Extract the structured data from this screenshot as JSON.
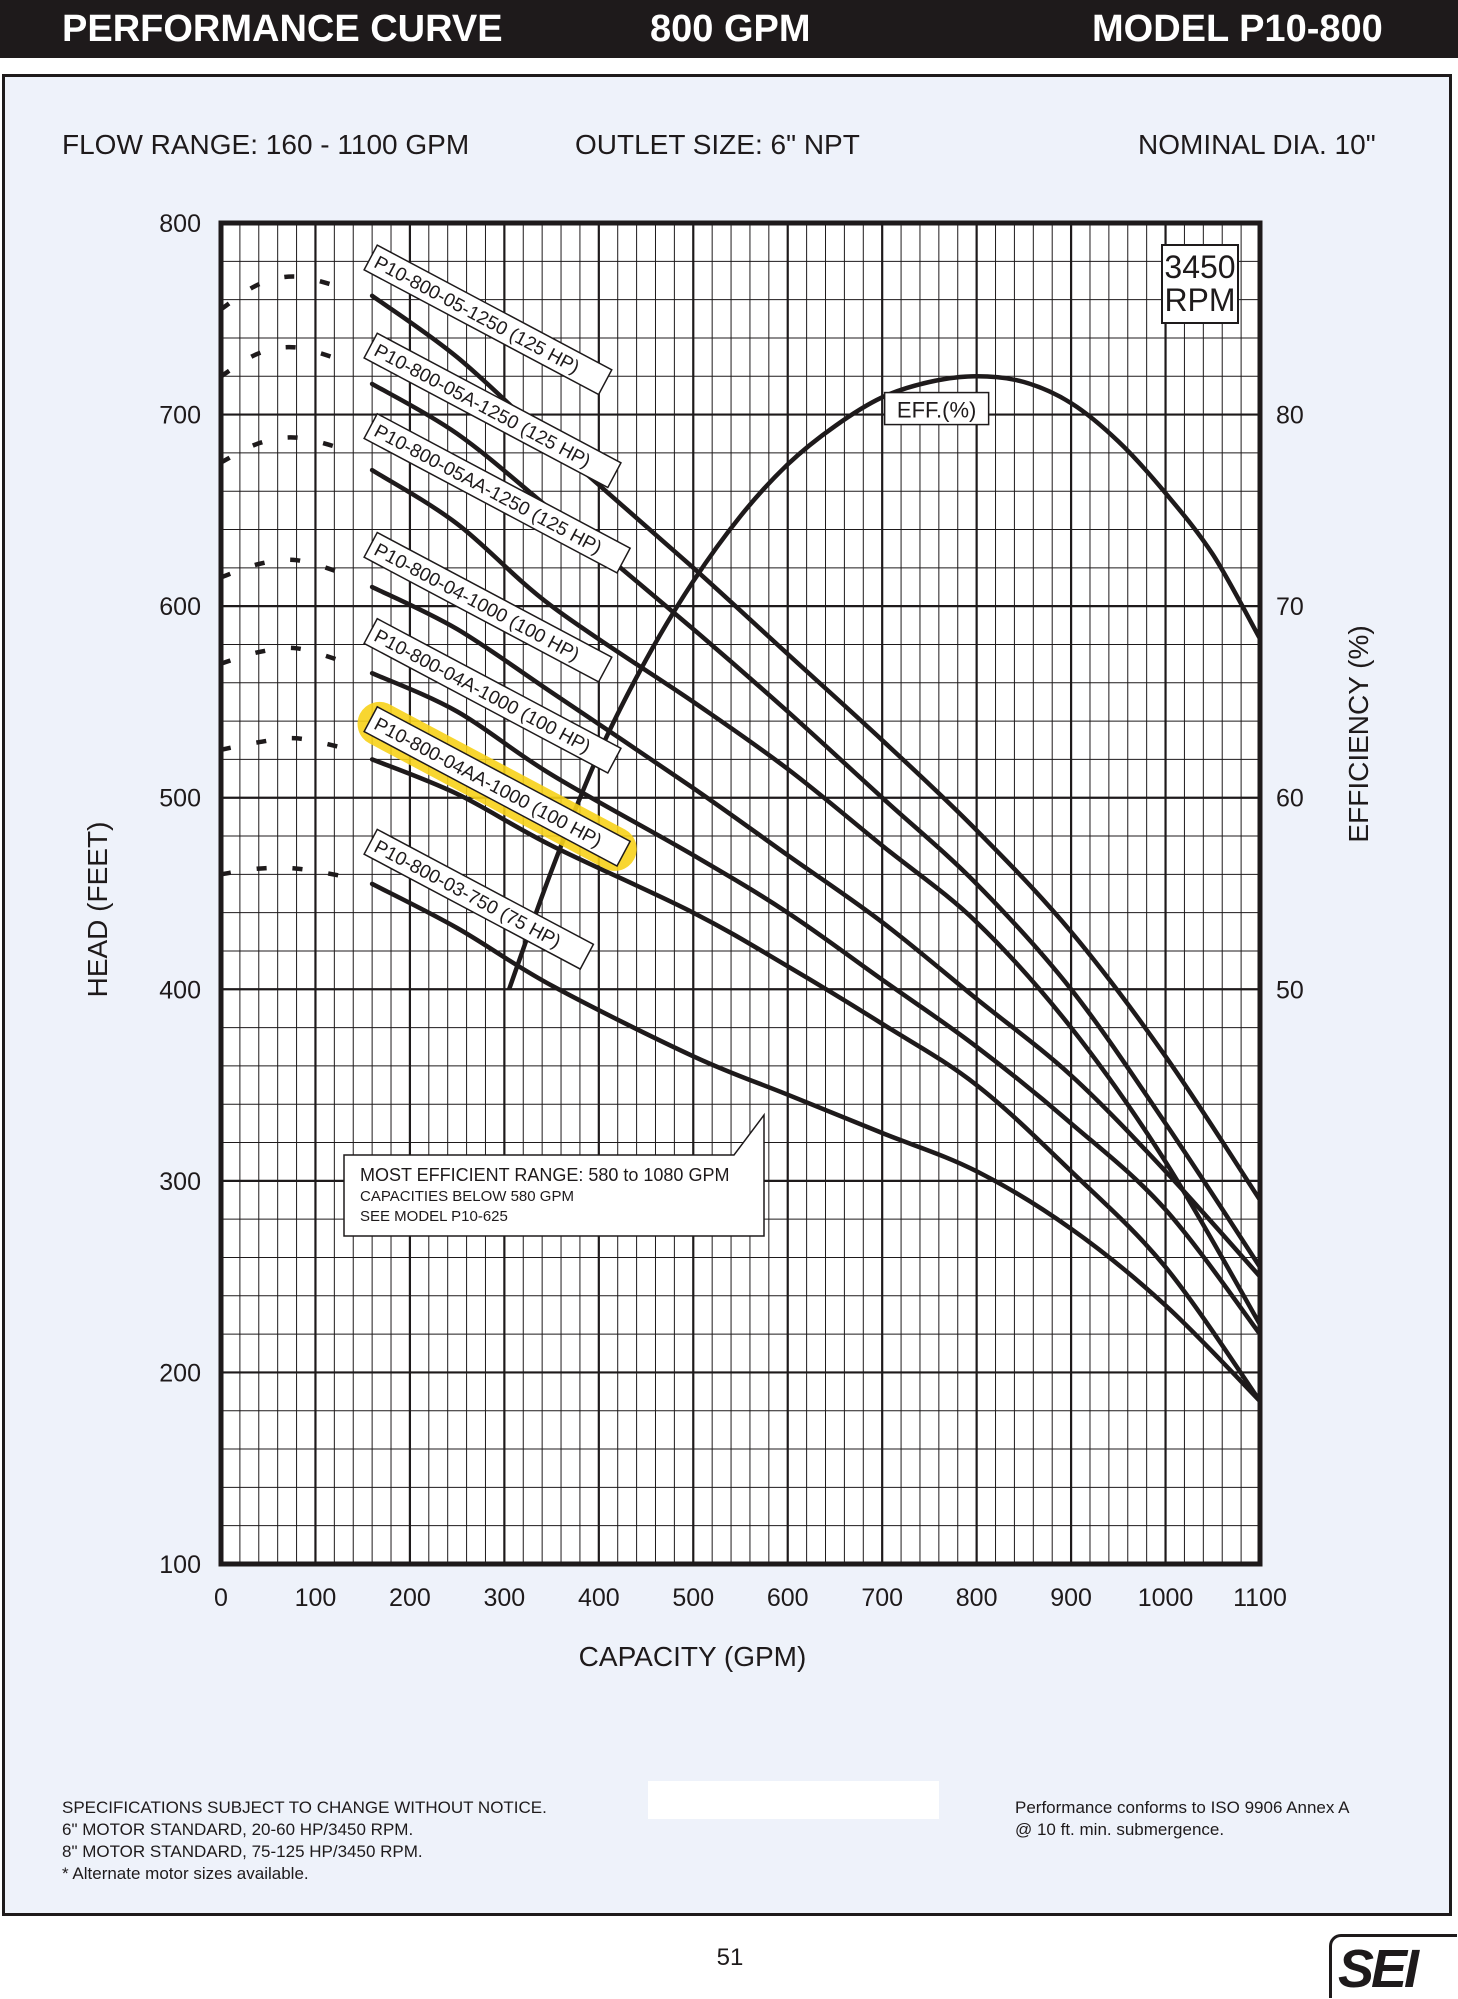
{
  "header": {
    "title": "PERFORMANCE CURVE",
    "flow": "800 GPM",
    "model": "MODEL  P10-800"
  },
  "info": {
    "flow_range": "FLOW RANGE: 160 - 1100 GPM",
    "outlet_size": "OUTLET SIZE: 6\" NPT",
    "nominal_dia": "NOMINAL DIA. 10\""
  },
  "chart_data": {
    "type": "line",
    "xlabel": "CAPACITY (GPM)",
    "ylabel": "HEAD (FEET)",
    "y2label": "EFFICIENCY (%)",
    "xlim": [
      0,
      1100
    ],
    "ylim": [
      100,
      800
    ],
    "y2lim": [
      50,
      80
    ],
    "y2_ticks": [
      50,
      60,
      70,
      80
    ],
    "x_ticks": [
      0,
      100,
      200,
      300,
      400,
      500,
      600,
      700,
      800,
      900,
      1000,
      1100
    ],
    "y_ticks": [
      100,
      200,
      300,
      400,
      500,
      600,
      700,
      800
    ],
    "grid": true,
    "rpm_box": [
      "3450",
      "RPM"
    ],
    "highlight_color": "#f7d21a",
    "series": [
      {
        "name": "P10-800-05-1250 (125 HP)",
        "shutoff": [
          [
            0,
            755
          ],
          [
            40,
            768
          ],
          [
            80,
            772
          ],
          [
            130,
            766
          ]
        ],
        "x": [
          160,
          250,
          350,
          500,
          600,
          700,
          800,
          900,
          1000,
          1100
        ],
        "y": [
          762,
          730,
          685,
          620,
          575,
          530,
          483,
          430,
          365,
          290
        ]
      },
      {
        "name": "P10-800-05A-1250 (125 HP)",
        "shutoff": [
          [
            0,
            720
          ],
          [
            40,
            732
          ],
          [
            80,
            735
          ],
          [
            130,
            728
          ]
        ],
        "x": [
          160,
          250,
          350,
          500,
          600,
          700,
          800,
          900,
          1000,
          1100
        ],
        "y": [
          716,
          690,
          650,
          588,
          545,
          500,
          455,
          400,
          330,
          255
        ]
      },
      {
        "name": "P10-800-05AA-1250 (125 HP)",
        "shutoff": [
          [
            0,
            675
          ],
          [
            40,
            685
          ],
          [
            80,
            688
          ],
          [
            130,
            682
          ]
        ],
        "x": [
          160,
          250,
          350,
          500,
          600,
          700,
          800,
          900,
          1000,
          1100
        ],
        "y": [
          671,
          643,
          600,
          550,
          515,
          475,
          435,
          380,
          310,
          225
        ]
      },
      {
        "name": "P10-800-04-1000 (100 HP)",
        "shutoff": [
          [
            0,
            615
          ],
          [
            40,
            622
          ],
          [
            80,
            624
          ],
          [
            130,
            617
          ]
        ],
        "x": [
          160,
          250,
          350,
          500,
          600,
          700,
          800,
          900,
          1000,
          1100
        ],
        "y": [
          610,
          588,
          555,
          505,
          470,
          435,
          395,
          355,
          305,
          250
        ]
      },
      {
        "name": "P10-800-04A-1000 (100 HP)",
        "shutoff": [
          [
            0,
            570
          ],
          [
            40,
            576
          ],
          [
            80,
            578
          ],
          [
            130,
            571
          ]
        ],
        "x": [
          160,
          250,
          350,
          500,
          600,
          700,
          800,
          900,
          1000,
          1100
        ],
        "y": [
          565,
          545,
          512,
          470,
          440,
          405,
          370,
          330,
          285,
          220
        ]
      },
      {
        "name": "P10-800-04AA-1000 (100 HP)",
        "shutoff": [
          [
            0,
            525
          ],
          [
            40,
            529
          ],
          [
            80,
            531
          ],
          [
            130,
            526
          ]
        ],
        "x": [
          160,
          250,
          350,
          500,
          600,
          700,
          800,
          900,
          1000,
          1100
        ],
        "y": [
          520,
          502,
          475,
          440,
          412,
          382,
          350,
          305,
          255,
          185
        ]
      },
      {
        "name": "P10-800-03-750 (75 HP)",
        "shutoff": [
          [
            0,
            460
          ],
          [
            40,
            463
          ],
          [
            80,
            463
          ],
          [
            130,
            459
          ]
        ],
        "x": [
          160,
          250,
          350,
          500,
          600,
          700,
          800,
          900,
          1000,
          1100
        ],
        "y": [
          455,
          432,
          402,
          365,
          345,
          325,
          305,
          275,
          235,
          185
        ]
      }
    ],
    "efficiency": {
      "name": "EFF.(%)",
      "x": [
        305,
        350,
        400,
        450,
        500,
        550,
        600,
        650,
        700,
        750,
        800,
        850,
        900,
        950,
        1000,
        1050,
        1100
      ],
      "y": [
        50.0,
        56.2,
        62.3,
        67.2,
        71.3,
        74.7,
        77.4,
        79.4,
        80.9,
        81.7,
        82.0,
        81.7,
        80.6,
        78.6,
        75.9,
        72.7,
        68.3
      ]
    },
    "annotation": {
      "lines": [
        "MOST EFFICIENT RANGE: 580 to 1080 GPM",
        "CAPACITIES BELOW 580 GPM",
        "SEE  MODEL P10-625"
      ]
    }
  },
  "footer": {
    "left_lines": [
      "SPECIFICATIONS SUBJECT TO CHANGE WITHOUT NOTICE.",
      "6\" MOTOR STANDARD, 20-60 HP/3450 RPM.",
      "8\" MOTOR STANDARD, 75-125 HP/3450 RPM.",
      "* Alternate motor sizes available."
    ],
    "right_lines": [
      "Performance conforms to ISO 9906 Annex A",
      "@ 10 ft. min. submergence."
    ],
    "page_number": "51",
    "logo": "SEI"
  }
}
